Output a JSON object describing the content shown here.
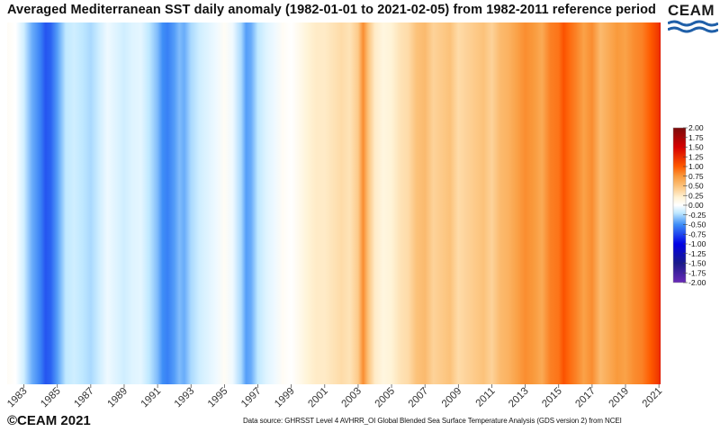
{
  "header": {
    "title": "Averaged Mediterranean SST daily anomaly (1982-01-01 to 2021-02-05) from 1982-2011 reference period",
    "logo_text": "CEAM"
  },
  "footer": {
    "credit": "©CEAM 2021",
    "source": "Data source: GHRSST Level 4 AVHRR_OI Global Blended Sea Surface Temperature Analysis (GDS version 2) from NCEI"
  },
  "chart_data": {
    "type": "heatmap",
    "title": "Averaged Mediterranean SST daily anomaly (1982-01-01 to 2021-02-05) from 1982-2011 reference period",
    "xlabel": "",
    "ylabel": "",
    "x_range": [
      1982.0,
      2021.1
    ],
    "x_ticks": [
      "1983",
      "1985",
      "1987",
      "1989",
      "1991",
      "1993",
      "1995",
      "1997",
      "1999",
      "2001",
      "2003",
      "2005",
      "2007",
      "2009",
      "2011",
      "2013",
      "2015",
      "2017",
      "2019",
      "2021"
    ],
    "colorbar": {
      "range": [
        -2.0,
        2.0
      ],
      "ticks": [
        "2.00",
        "1.75",
        "1.50",
        "1.25",
        "1.00",
        "0.75",
        "0.50",
        "0.25",
        "0.00",
        "-0.25",
        "-0.50",
        "-0.75",
        "-1.00",
        "-1.25",
        "-1.50",
        "-1.75",
        "-2.00"
      ],
      "stops": [
        {
          "v": -2.0,
          "c": "#6a2ab8"
        },
        {
          "v": -1.5,
          "c": "#1a1a8a"
        },
        {
          "v": -1.0,
          "c": "#0000e6"
        },
        {
          "v": -0.5,
          "c": "#3e8ef7"
        },
        {
          "v": -0.2,
          "c": "#bfe8ff"
        },
        {
          "v": 0.0,
          "c": "#ffffff"
        },
        {
          "v": 0.2,
          "c": "#fff3d6"
        },
        {
          "v": 0.5,
          "c": "#fcc27a"
        },
        {
          "v": 0.75,
          "c": "#f99a3c"
        },
        {
          "v": 1.0,
          "c": "#ff5a00"
        },
        {
          "v": 1.5,
          "c": "#d60000"
        },
        {
          "v": 2.0,
          "c": "#7a0c0c"
        }
      ]
    },
    "anomaly_series": {
      "x": [
        1982.0,
        1982.5,
        1983.0,
        1983.5,
        1984.0,
        1984.3,
        1984.6,
        1985.0,
        1985.5,
        1986.0,
        1986.5,
        1987.0,
        1987.5,
        1988.0,
        1988.5,
        1989.0,
        1989.5,
        1990.0,
        1990.5,
        1991.0,
        1991.3,
        1991.6,
        1992.0,
        1992.3,
        1992.6,
        1993.0,
        1993.5,
        1994.0,
        1994.5,
        1995.0,
        1995.5,
        1996.0,
        1996.3,
        1996.6,
        1997.0,
        1997.5,
        1998.0,
        1998.5,
        1999.0,
        1999.5,
        2000.0,
        2000.5,
        2001.0,
        2001.5,
        2002.0,
        2002.5,
        2003.0,
        2003.3,
        2003.6,
        2004.0,
        2004.5,
        2005.0,
        2005.5,
        2006.0,
        2006.5,
        2007.0,
        2007.5,
        2008.0,
        2008.5,
        2009.0,
        2009.5,
        2010.0,
        2010.5,
        2011.0,
        2011.5,
        2012.0,
        2012.5,
        2013.0,
        2013.5,
        2014.0,
        2014.5,
        2015.0,
        2015.3,
        2015.6,
        2016.0,
        2016.5,
        2017.0,
        2017.5,
        2018.0,
        2018.5,
        2019.0,
        2019.5,
        2020.0,
        2020.5,
        2021.0,
        2021.1
      ],
      "values": [
        0.05,
        0.0,
        -0.15,
        -0.4,
        -0.55,
        -0.7,
        -0.65,
        -0.45,
        -0.2,
        -0.15,
        -0.2,
        -0.25,
        -0.15,
        -0.05,
        -0.1,
        -0.15,
        -0.1,
        -0.08,
        -0.2,
        -0.35,
        -0.5,
        -0.55,
        -0.45,
        -0.35,
        -0.4,
        -0.25,
        -0.15,
        -0.1,
        -0.05,
        0.05,
        -0.05,
        -0.25,
        -0.45,
        -0.4,
        -0.2,
        -0.1,
        -0.05,
        0.05,
        0.0,
        0.1,
        0.2,
        0.25,
        0.25,
        0.3,
        0.35,
        0.3,
        0.45,
        0.8,
        0.5,
        0.25,
        0.15,
        0.2,
        0.3,
        0.35,
        0.5,
        0.55,
        0.4,
        0.45,
        0.5,
        0.35,
        0.4,
        0.45,
        0.5,
        0.4,
        0.55,
        0.6,
        0.7,
        0.8,
        0.75,
        0.65,
        0.85,
        0.9,
        1.05,
        0.95,
        0.85,
        0.7,
        0.8,
        0.55,
        0.65,
        0.75,
        0.7,
        0.8,
        0.85,
        1.0,
        1.2,
        1.4
      ]
    }
  }
}
